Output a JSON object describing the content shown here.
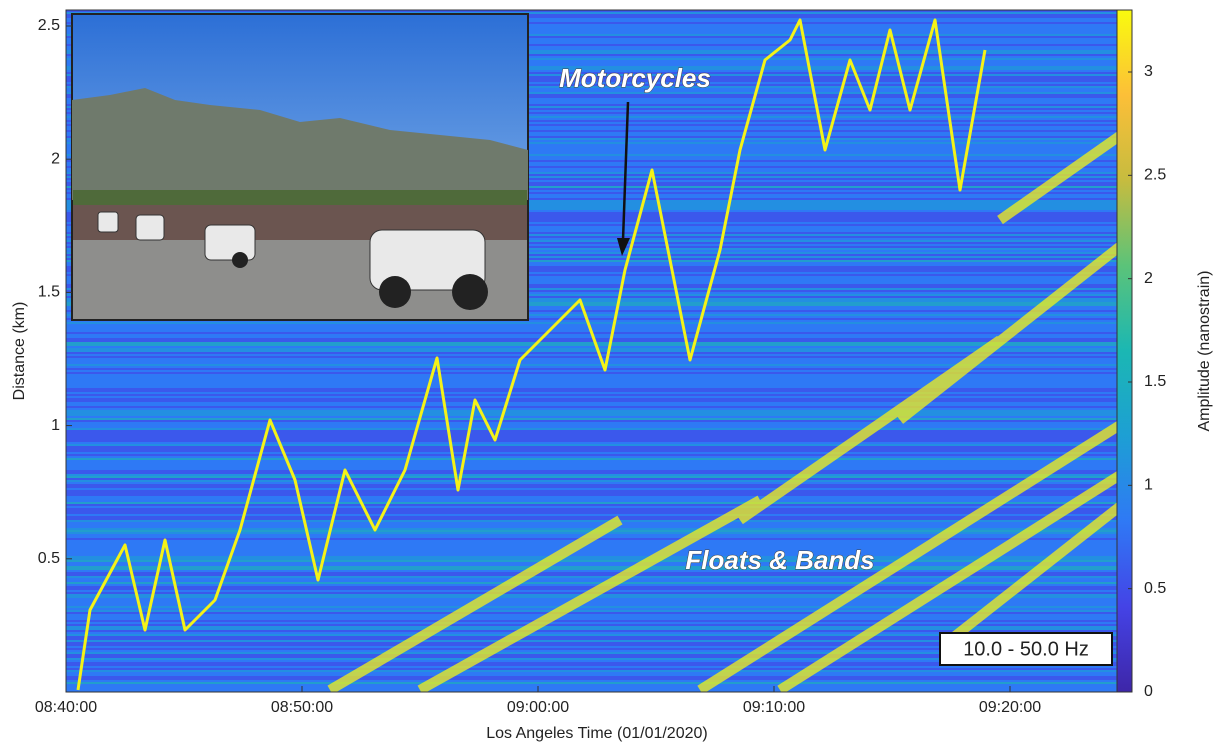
{
  "chart_data": {
    "type": "heatmap",
    "xlabel": "Los Angeles Time (01/01/2020)",
    "ylabel": "Distance (km)",
    "colorbar_label": "Amplitude (nanostrain)",
    "xlim": [
      520,
      565
    ],
    "xticks": [
      {
        "value": 520,
        "label": "08:40:00"
      },
      {
        "value": 530,
        "label": "08:50:00"
      },
      {
        "value": 540,
        "label": "09:00:00"
      },
      {
        "value": 550,
        "label": "09:10:00"
      },
      {
        "value": 560,
        "label": "09:20:00"
      }
    ],
    "ylim": [
      0,
      2.56
    ],
    "yticks": [
      0.5,
      1,
      1.5,
      2,
      2.5
    ],
    "clim": [
      0,
      3.3
    ],
    "cticks": [
      0,
      0.5,
      1,
      1.5,
      2,
      2.5,
      3
    ],
    "colormap": [
      "#3e26a8",
      "#4443e6",
      "#2f79f5",
      "#1d9fd4",
      "#1bb7b3",
      "#5bc379",
      "#c6bc3f",
      "#fcbf38",
      "#f9fb0e"
    ],
    "annotations": [
      "Motorcycles",
      "Floats & Bands",
      "10.0 - 50.0 Hz"
    ]
  }
}
